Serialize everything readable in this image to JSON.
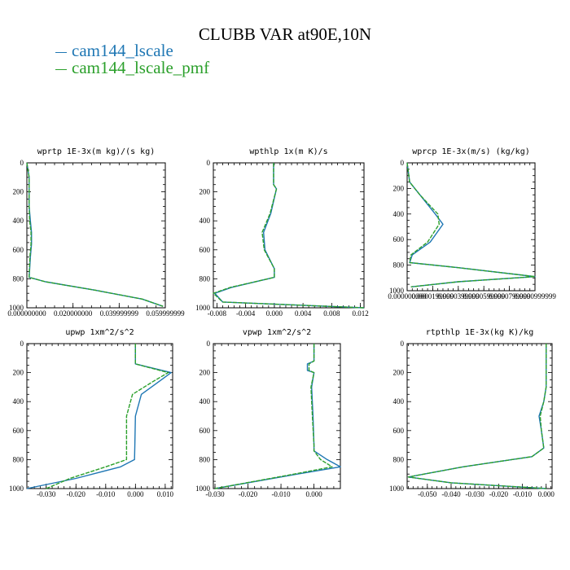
{
  "title": "CLUBB VAR at90E,10N",
  "legend": [
    {
      "label": "cam144_lscale",
      "color": "#1f77b4"
    },
    {
      "label": "cam144_lscale_pmf",
      "color": "#2ca02c"
    }
  ],
  "chart_data": [
    {
      "type": "line",
      "title": "wprtp  1E-3x(m kg)/(s kg)",
      "xlim": [
        0,
        0.06
      ],
      "ylim": [
        0,
        1000
      ],
      "xticks": [
        0.0,
        0.02,
        0.04,
        0.06
      ],
      "xticklabels": [
        "0.000000000",
        "0.020000000",
        "0.039999999",
        "0.059999999"
      ],
      "yticks": [
        0,
        200,
        400,
        600,
        800,
        1000
      ],
      "yticklabels": [
        "0",
        "200",
        "400",
        "600",
        "800",
        "1000"
      ],
      "series": [
        {
          "name": "cam144_lscale",
          "x": [
            0.0,
            0.001,
            0.001,
            0.0015,
            0.002,
            0.002,
            0.0015,
            0.001,
            0.008,
            0.03,
            0.05,
            0.059
          ],
          "y": [
            0,
            100,
            300,
            400,
            480,
            560,
            650,
            790,
            820,
            880,
            940,
            990
          ]
        },
        {
          "name": "cam144_lscale_pmf",
          "x": [
            0.0,
            0.001,
            0.001,
            0.0012,
            0.0018,
            0.0018,
            0.0013,
            0.001,
            0.008,
            0.03,
            0.05,
            0.059
          ],
          "y": [
            0,
            100,
            300,
            400,
            480,
            560,
            650,
            790,
            820,
            880,
            940,
            990
          ]
        }
      ]
    },
    {
      "type": "line",
      "title": "wpthlp  1x(m K)/s",
      "xlim": [
        -0.0085,
        0.0125
      ],
      "ylim": [
        0,
        1000
      ],
      "xticks": [
        -0.008,
        -0.004,
        0.0,
        0.004,
        0.008,
        0.012
      ],
      "xticklabels": [
        "-0.008",
        "-0.004",
        "0.000",
        "0.004",
        "0.008",
        "0.012"
      ],
      "yticks": [
        0,
        200,
        400,
        600,
        800,
        1000
      ],
      "yticklabels": [
        "0",
        "200",
        "400",
        "600",
        "800",
        "1000"
      ],
      "series": [
        {
          "name": "cam144_lscale",
          "x": [
            -0.0001,
            -0.0001,
            0.0003,
            -0.0005,
            -0.0015,
            -0.0013,
            0.0,
            0.0,
            -0.006,
            -0.0083,
            -0.0072,
            0.0125
          ],
          "y": [
            0,
            150,
            180,
            350,
            480,
            600,
            730,
            790,
            860,
            900,
            960,
            1000
          ]
        },
        {
          "name": "cam144_lscale_pmf",
          "x": [
            -0.0001,
            -0.0001,
            0.0003,
            -0.0006,
            -0.0017,
            -0.0014,
            0.0,
            0.0,
            -0.0062,
            -0.0085,
            -0.0072,
            0.0125
          ],
          "y": [
            0,
            150,
            180,
            350,
            480,
            600,
            730,
            790,
            860,
            900,
            960,
            1000
          ]
        }
      ]
    },
    {
      "type": "line",
      "title": "wprcp  1E-3x(m/s) (kg/kg)",
      "xlim": [
        0.0,
        0.0001
      ],
      "ylim": [
        0,
        1000
      ],
      "xticks": [
        0.0,
        2e-05,
        4e-05,
        6e-05,
        8e-05,
        0.0001
      ],
      "xticklabels": [
        "0.000000000",
        "0.0000199999",
        "0.0000399999",
        "0.0000599999",
        "0.0000799999",
        "0.0000999999"
      ],
      "yticks": [
        0,
        200,
        400,
        600,
        800,
        1000
      ],
      "yticklabels": [
        "0",
        "200",
        "400",
        "600",
        "800",
        "1000"
      ],
      "series": [
        {
          "name": "cam144_lscale",
          "x": [
            0.0,
            2e-06,
            1e-05,
            2.2e-05,
            2.8e-05,
            1.8e-05,
            4e-06,
            2e-06,
            4e-05,
            0.0001,
            4e-05,
            3e-06
          ],
          "y": [
            0,
            150,
            250,
            400,
            480,
            620,
            720,
            780,
            820,
            890,
            930,
            970
          ]
        },
        {
          "name": "cam144_lscale_pmf",
          "x": [
            0.0,
            2e-06,
            1e-05,
            2.4e-05,
            2.5e-05,
            1.6e-05,
            3e-06,
            2e-06,
            4e-05,
            0.0001,
            4e-05,
            3e-06
          ],
          "y": [
            0,
            150,
            250,
            400,
            480,
            620,
            720,
            780,
            820,
            890,
            930,
            970
          ]
        }
      ]
    },
    {
      "type": "line",
      "title": "upwp  1xm^2/s^2",
      "xlim": [
        -0.0365,
        0.0125
      ],
      "ylim": [
        0,
        1000
      ],
      "xticks": [
        -0.03,
        -0.02,
        -0.01,
        0.0,
        0.01
      ],
      "xticklabels": [
        "-0.030",
        "-0.020",
        "-0.010",
        "0.000",
        "0.010"
      ],
      "yticks": [
        0,
        200,
        400,
        600,
        800,
        1000
      ],
      "yticklabels": [
        "0",
        "200",
        "400",
        "600",
        "800",
        "1000"
      ],
      "series": [
        {
          "name": "cam144_lscale",
          "x": [
            0.0,
            0.0,
            0.012,
            0.008,
            0.002,
            0.0,
            -0.0002,
            -0.0003,
            -0.005,
            -0.02,
            -0.0365
          ],
          "y": [
            0,
            140,
            200,
            260,
            350,
            500,
            700,
            800,
            850,
            930,
            1000
          ]
        },
        {
          "name": "cam144_lscale_pmf",
          "x": [
            0.0,
            0.0,
            0.011,
            0.006,
            -0.001,
            -0.003,
            -0.003,
            -0.003,
            -0.01,
            -0.022,
            -0.03
          ],
          "y": [
            0,
            140,
            200,
            260,
            350,
            500,
            700,
            800,
            850,
            930,
            1000
          ]
        }
      ]
    },
    {
      "type": "line",
      "title": "vpwp  1xm^2/s^2",
      "xlim": [
        -0.0305,
        0.008
      ],
      "ylim": [
        0,
        1000
      ],
      "xticks": [
        -0.03,
        -0.02,
        -0.01,
        0.0
      ],
      "xticklabels": [
        "-0.030",
        "-0.020",
        "-0.010",
        "0.000"
      ],
      "yticks": [
        0,
        200,
        400,
        600,
        800,
        1000
      ],
      "yticklabels": [
        "0",
        "200",
        "400",
        "600",
        "800",
        "1000"
      ],
      "series": [
        {
          "name": "cam144_lscale",
          "x": [
            0.0,
            0.0,
            -0.002,
            -0.002,
            0.0,
            -0.0007,
            -0.0003,
            0.0,
            0.0,
            0.004,
            0.008,
            -0.005,
            -0.03
          ],
          "y": [
            0,
            120,
            140,
            185,
            200,
            300,
            500,
            700,
            740,
            800,
            850,
            900,
            1000
          ]
        },
        {
          "name": "cam144_lscale_pmf",
          "x": [
            0.0,
            0.0,
            -0.0015,
            -0.0015,
            0.0,
            -0.0009,
            -0.0005,
            0.0,
            0.0,
            0.002,
            0.0055,
            -0.006,
            -0.03
          ],
          "y": [
            0,
            120,
            140,
            185,
            200,
            300,
            500,
            700,
            740,
            800,
            850,
            900,
            1000
          ]
        }
      ]
    },
    {
      "type": "line",
      "title": "rtpthlp  1E-3x(kg K)/kg",
      "xlim": [
        -0.0585,
        0.0025
      ],
      "ylim": [
        0,
        1000
      ],
      "xticks": [
        -0.05,
        -0.04,
        -0.03,
        -0.02,
        -0.01,
        0.0
      ],
      "xticklabels": [
        "-0.050",
        "-0.040",
        "-0.030",
        "-0.020",
        "-0.010",
        "0.000"
      ],
      "yticks": [
        0,
        200,
        400,
        600,
        800,
        1000
      ],
      "yticklabels": [
        "0",
        "200",
        "400",
        "600",
        "800",
        "1000"
      ],
      "series": [
        {
          "name": "cam144_lscale",
          "x": [
            0.0,
            0.0,
            -0.001,
            -0.003,
            -0.002,
            -0.001,
            -0.006,
            -0.035,
            -0.058,
            -0.04,
            0.0
          ],
          "y": [
            0,
            300,
            400,
            500,
            600,
            720,
            780,
            850,
            920,
            960,
            1000
          ]
        },
        {
          "name": "cam144_lscale_pmf",
          "x": [
            0.0,
            0.0,
            -0.001,
            -0.0025,
            -0.002,
            -0.001,
            -0.006,
            -0.035,
            -0.058,
            -0.04,
            0.0
          ],
          "y": [
            0,
            300,
            400,
            500,
            600,
            720,
            780,
            850,
            920,
            960,
            1000
          ]
        }
      ]
    }
  ]
}
